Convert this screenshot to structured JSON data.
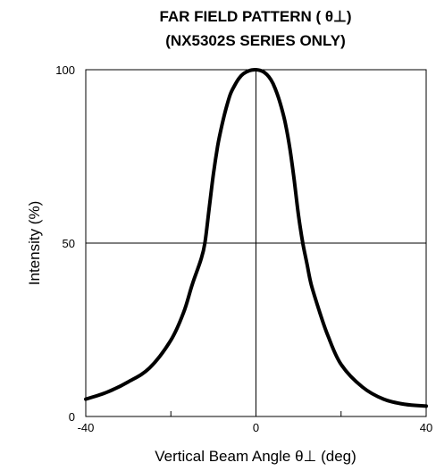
{
  "chart_data": {
    "type": "line",
    "title_line1": "FAR FIELD PATTERN ( θ⊥)",
    "title_line2": "(NX5302S SERIES ONLY)",
    "xlabel": "Vertical Beam Angle θ⊥ (deg)",
    "ylabel": "Intensity (%)",
    "xlim": [
      -40,
      40
    ],
    "ylim": [
      0,
      100
    ],
    "x_ticks": [
      -40,
      0,
      40
    ],
    "x_tick_marks": [
      -40,
      -20,
      0,
      20,
      40
    ],
    "y_ticks": [
      0,
      50,
      100
    ],
    "grid": {
      "vertical_at": [
        0
      ],
      "horizontal_at": [
        50
      ]
    },
    "line_color": "#000000",
    "series": [
      {
        "x": [
          -40,
          -35,
          -30,
          -25,
          -20,
          -17,
          -15,
          -13,
          -12,
          -11,
          -10,
          -9,
          -8,
          -7,
          -6,
          -5,
          -4,
          -3,
          -2,
          -1,
          0,
          1,
          2,
          3,
          4,
          5,
          6,
          7,
          8,
          9,
          10,
          11,
          12,
          13,
          15,
          17,
          20,
          25,
          30,
          35,
          40
        ],
        "y": [
          5,
          7,
          10,
          14,
          22,
          30,
          38,
          45,
          50,
          60,
          70,
          78,
          84,
          89,
          93,
          95.5,
          97.5,
          98.8,
          99.5,
          99.9,
          100,
          99.8,
          99.2,
          98,
          96,
          93,
          89,
          84,
          77,
          68,
          58,
          50,
          44,
          38,
          30,
          23,
          15,
          8.5,
          5,
          3.5,
          3
        ]
      }
    ]
  }
}
